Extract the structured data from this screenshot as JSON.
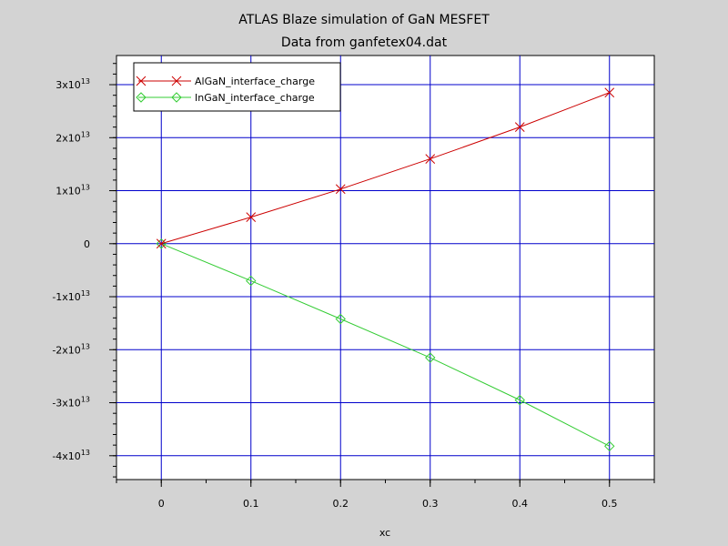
{
  "chart_data": {
    "type": "line",
    "title": "ATLAS Blaze simulation of GaN MESFET",
    "subtitle": "Data from ganfetex04.dat",
    "xlabel": "xc",
    "ylabel": "",
    "xlim": [
      -0.05,
      0.55
    ],
    "ylim": [
      -44500000000000.0,
      35500000000000.0
    ],
    "grid": true,
    "legend_position": "top-left",
    "x_ticks": [
      {
        "value": 0,
        "label": "0"
      },
      {
        "value": 0.1,
        "label": "0.1"
      },
      {
        "value": 0.2,
        "label": "0.2"
      },
      {
        "value": 0.3,
        "label": "0.3"
      },
      {
        "value": 0.4,
        "label": "0.4"
      },
      {
        "value": 0.5,
        "label": "0.5"
      }
    ],
    "y_ticks": [
      {
        "value": 30000000000000.0,
        "mantissa": "3x10",
        "exponent": "13"
      },
      {
        "value": 20000000000000.0,
        "mantissa": "2x10",
        "exponent": "13"
      },
      {
        "value": 10000000000000.0,
        "mantissa": "1x10",
        "exponent": "13"
      },
      {
        "value": 0,
        "mantissa": "0",
        "exponent": ""
      },
      {
        "value": -10000000000000.0,
        "mantissa": "-1x10",
        "exponent": "13"
      },
      {
        "value": -20000000000000.0,
        "mantissa": "-2x10",
        "exponent": "13"
      },
      {
        "value": -30000000000000.0,
        "mantissa": "-3x10",
        "exponent": "13"
      },
      {
        "value": -40000000000000.0,
        "mantissa": "-4x10",
        "exponent": "13"
      }
    ],
    "x": [
      0,
      0.1,
      0.2,
      0.3,
      0.4,
      0.5
    ],
    "series": [
      {
        "name": "AlGaN_interface_charge",
        "color": "#cc0000",
        "marker": "x",
        "values": [
          0,
          5000000000000.0,
          10300000000000.0,
          16000000000000.0,
          22000000000000.0,
          28500000000000.0
        ]
      },
      {
        "name": "InGaN_interface_charge",
        "color": "#33cc33",
        "marker": "diamond",
        "values": [
          0,
          -7000000000000.0,
          -14200000000000.0,
          -21500000000000.0,
          -29500000000000.0,
          -38200000000000.0
        ]
      }
    ],
    "colors": {
      "background": "#d3d3d3",
      "plot_background": "#ffffff",
      "grid": "#0000cc"
    }
  }
}
